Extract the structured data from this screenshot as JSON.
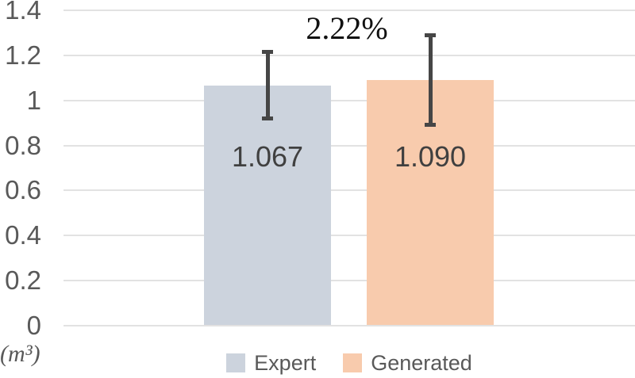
{
  "chart_data": {
    "type": "bar",
    "title": "",
    "xlabel": "",
    "ylabel": "(m³)",
    "unit_label": "(m³)",
    "annotation": "2.22%",
    "categories": [
      "Expert",
      "Generated"
    ],
    "values": [
      1.067,
      1.09
    ],
    "value_labels": [
      "1.067",
      "1.090"
    ],
    "errors": [
      0.15,
      0.2
    ],
    "bar_colors": [
      "#ccd3dd",
      "#f8cbad"
    ],
    "error_bar_color": "#464646",
    "ylim": [
      0,
      1.4
    ],
    "ytick_values": [
      0,
      0.2,
      0.4,
      0.6,
      0.8,
      1,
      1.2,
      1.4
    ],
    "ytick_labels": [
      "0",
      "0.2",
      "0.4",
      "0.6",
      "0.8",
      "1",
      "1.2",
      "1.4"
    ],
    "grid": true,
    "gridline_color": "#e2e2e2",
    "legend_position": "bottom",
    "legend": [
      {
        "label": "Expert",
        "color": "#ccd3dd"
      },
      {
        "label": "Generated",
        "color": "#f8cbad"
      }
    ],
    "text_colors": {
      "ticks": "#595959",
      "values": "#404040",
      "annotation": "#111111",
      "legend": "#595959"
    }
  }
}
